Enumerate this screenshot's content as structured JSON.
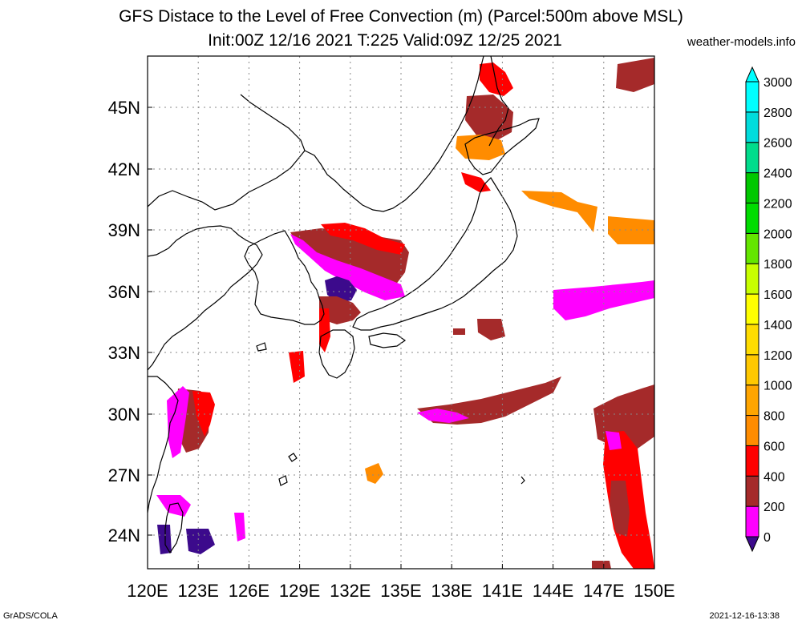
{
  "title_line1": "GFS Distace to the Level of Free Convection (m) (Parcel:500m above MSL)",
  "title_line2": "Init:00Z 12/16 2021 T:225 Valid:09Z 12/25 2021",
  "credit": "weather-models.info",
  "footer_left": "GrADS/COLA",
  "footer_right": "2021-12-16-13:38",
  "lon_labels": [
    "120E",
    "123E",
    "126E",
    "129E",
    "132E",
    "135E",
    "138E",
    "141E",
    "144E",
    "147E",
    "150E"
  ],
  "lat_labels": [
    "24N",
    "27N",
    "30N",
    "33N",
    "36N",
    "39N",
    "42N",
    "45N"
  ],
  "colorbar": {
    "levels": [
      "0",
      "200",
      "400",
      "600",
      "800",
      "1000",
      "1200",
      "1400",
      "1600",
      "1800",
      "2000",
      "2200",
      "2400",
      "2600",
      "2800",
      "3000"
    ],
    "colors": [
      "#3c0a8c",
      "#ff00ff",
      "#a52a2a",
      "#ff0000",
      "#ff8c00",
      "#ffa500",
      "#ffc800",
      "#ffdc00",
      "#ffff00",
      "#c8ff00",
      "#64e600",
      "#00dc00",
      "#00c800",
      "#00dc8c",
      "#00dcdc",
      "#00ffff"
    ]
  },
  "contour_field_colors": {
    "0-200": "#3c0a8c",
    "200-400": "#ff00ff",
    "400-600": "#a52a2a",
    "600-800": "#ff0000",
    "800-1000": "#ff8c00",
    "1000-1200": "#ffa500"
  }
}
